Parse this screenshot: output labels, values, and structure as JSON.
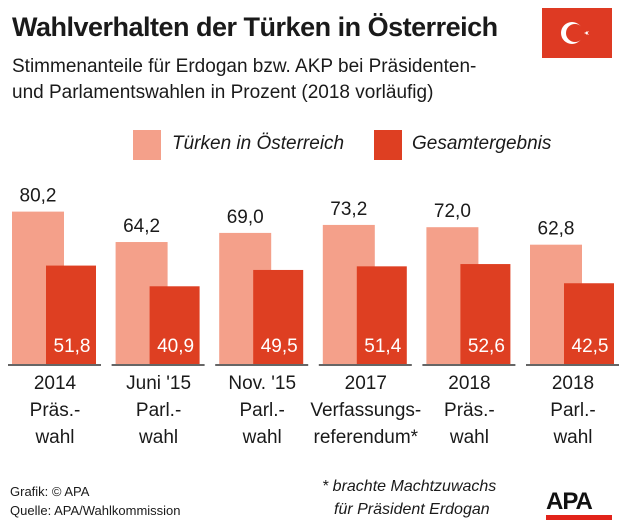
{
  "title": "Wahlverhalten der Türken in Österreich",
  "subtitle_line1": "Stimmenanteile für Erdogan bzw. AKP bei Präsidenten-",
  "subtitle_line2": "und Parlamentswahlen in Prozent (2018 vorläufig)",
  "flag_icon": "turkey-flag-icon",
  "colors": {
    "turks": "#f4a08a",
    "total": "#de3f22",
    "flag": "#de3a23"
  },
  "chart_data": {
    "type": "bar",
    "categories": [
      [
        "2014",
        "Präs.-",
        "wahl"
      ],
      [
        "Juni '15",
        "Parl.-",
        "wahl"
      ],
      [
        "Nov. '15",
        "Parl.-",
        "wahl"
      ],
      [
        "2017",
        "Verfassungs-",
        "referendum*"
      ],
      [
        "2018",
        "Präs.-",
        "wahl"
      ],
      [
        "2018",
        "Parl.-",
        "wahl"
      ]
    ],
    "series": [
      {
        "name": "Türken in Österreich",
        "values": [
          80.2,
          64.2,
          69.0,
          73.2,
          72.0,
          62.8
        ],
        "labels": [
          "80,2",
          "64,2",
          "69,0",
          "73,2",
          "72,0",
          "62,8"
        ]
      },
      {
        "name": "Gesamtergebnis",
        "values": [
          51.8,
          40.9,
          49.5,
          51.4,
          52.6,
          42.5
        ],
        "labels": [
          "51,8",
          "40,9",
          "49,5",
          "51,4",
          "52,6",
          "42,5"
        ]
      }
    ],
    "ylim": [
      0,
      100
    ],
    "grid": false,
    "legend": "top"
  },
  "footer": {
    "credit": "Grafik: © APA",
    "source": "Quelle: APA/Wahlkommission",
    "note_line1": "* brachte Machtzuwachs",
    "note_line2": "für Präsident Erdogan",
    "logo": "APA"
  }
}
